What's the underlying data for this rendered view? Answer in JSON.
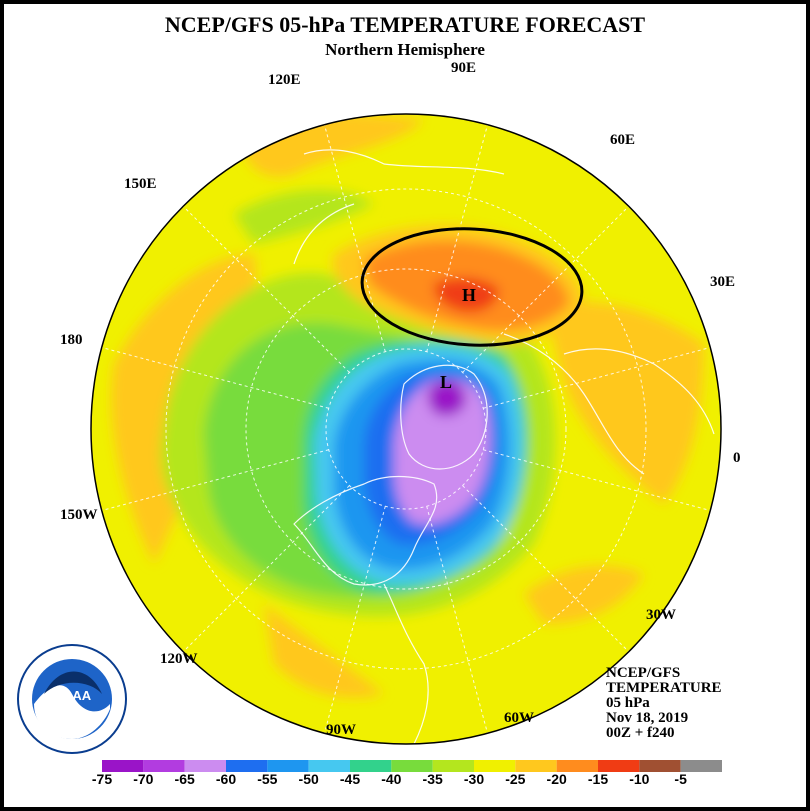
{
  "title": "NCEP/GFS 05-hPa TEMPERATURE FORECAST",
  "subtitle": "Northern Hemisphere",
  "longitude_labels": [
    "90E",
    "60E",
    "30E",
    "0",
    "30W",
    "60W",
    "90W",
    "120W",
    "150W",
    "180",
    "150E",
    "120E"
  ],
  "features": {
    "high": "H",
    "low": "L"
  },
  "logo": {
    "name": "noaa-logo",
    "text": "NOAA"
  },
  "info": [
    "NCEP/GFS",
    "TEMPERATURE",
    "05 hPa",
    "Nov 18, 2019",
    "00Z + f240"
  ],
  "colors": {
    "outline": "#000000",
    "frame": "#000000"
  },
  "legend": {
    "ticks": [
      "-75",
      "-70",
      "-65",
      "-60",
      "-55",
      "-50",
      "-45",
      "-40",
      "-35",
      "-30",
      "-25",
      "-20",
      "-15",
      "-10",
      "-5"
    ],
    "colors": [
      "#9a14c8",
      "#b23ce0",
      "#cc8cf0",
      "#1e6ef0",
      "#1e96f0",
      "#46c8f0",
      "#32d28c",
      "#78dc3c",
      "#b4e61e",
      "#f0f000",
      "#ffc81e",
      "#ff8c1e",
      "#f03c14",
      "#a05032",
      "#8c8c8c"
    ]
  }
}
